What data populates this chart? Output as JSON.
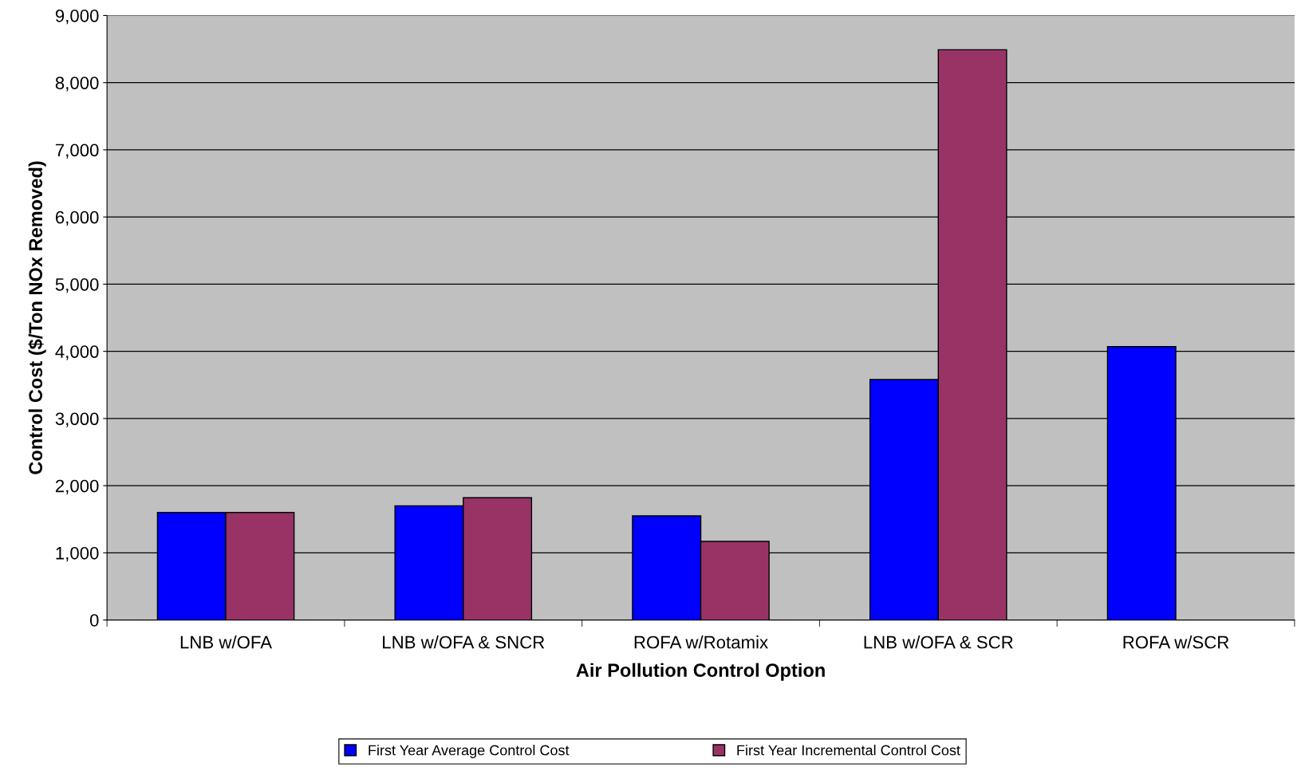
{
  "chart_data": {
    "type": "bar",
    "xlabel": "Air Pollution Control Option",
    "ylabel": "Control Cost ($/Ton NOx Removed)",
    "categories": [
      "LNB w/OFA",
      "LNB w/OFA & SNCR",
      "ROFA w/Rotamix",
      "LNB w/OFA & SCR",
      "ROFA w/SCR"
    ],
    "series": [
      {
        "name": "First Year Average Control Cost",
        "color": "#0000ff",
        "values": [
          1600,
          1700,
          1550,
          3580,
          4070
        ]
      },
      {
        "name": "First Year Incremental Control Cost",
        "color": "#993366",
        "values": [
          1600,
          1820,
          1170,
          8490,
          null
        ]
      }
    ],
    "ylim": [
      0,
      9000
    ],
    "yticks": [
      {
        "value": 0,
        "label": "0"
      },
      {
        "value": 1000,
        "label": "1,000"
      },
      {
        "value": 2000,
        "label": "2,000"
      },
      {
        "value": 3000,
        "label": "3,000"
      },
      {
        "value": 4000,
        "label": "4,000"
      },
      {
        "value": 5000,
        "label": "5,000"
      },
      {
        "value": 6000,
        "label": "6,000"
      },
      {
        "value": 7000,
        "label": "7,000"
      },
      {
        "value": 8000,
        "label": "8,000"
      },
      {
        "value": 9000,
        "label": "9,000"
      }
    ],
    "grid": "y",
    "legend": "bottom"
  }
}
